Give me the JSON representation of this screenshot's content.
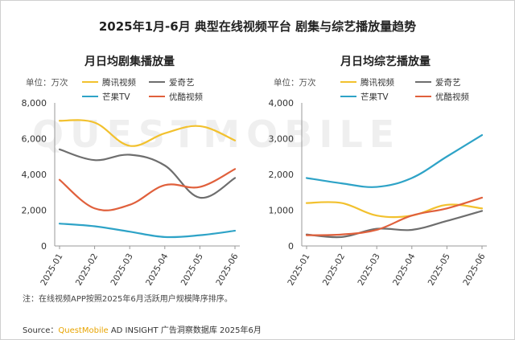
{
  "page": {
    "title": "2025年1月-6月 典型在线视频平台 剧集与综艺播放量趋势",
    "note": "注：在线视频APP按照2025年6月活跃用户规模降序排序。",
    "source_prefix": "Source：",
    "source_brand": "QuestMobile",
    "source_suffix": " AD INSIGHT 广告洞察数据库 2025年6月",
    "watermark": "QUESTMOBILE"
  },
  "legend_colors": {
    "腾讯视频": "#f2c12e",
    "爱奇艺": "#6e6e6e",
    "芒果TV": "#2ea3c7",
    "优酷视频": "#e0603c"
  },
  "chart_data": [
    {
      "type": "line",
      "title": "月日均剧集播放量",
      "unit": "单位：万次",
      "categories": [
        "2025-01",
        "2025-02",
        "2025-03",
        "2025-04",
        "2025-05",
        "2025-06"
      ],
      "ylim": [
        0,
        8000
      ],
      "yticks": [
        0,
        2000,
        4000,
        6000,
        8000
      ],
      "ytick_labels": [
        "0",
        "2,000",
        "4,000",
        "6,000",
        "8,000"
      ],
      "series": [
        {
          "name": "腾讯视频",
          "values": [
            7000,
            6900,
            5600,
            6300,
            6700,
            5900
          ]
        },
        {
          "name": "爱奇艺",
          "values": [
            5400,
            4800,
            5100,
            4500,
            2700,
            3800
          ]
        },
        {
          "name": "芒果TV",
          "values": [
            1250,
            1100,
            800,
            500,
            600,
            850
          ]
        },
        {
          "name": "优酷视频",
          "values": [
            3700,
            2100,
            2300,
            3400,
            3300,
            4300
          ]
        }
      ]
    },
    {
      "type": "line",
      "title": "月日均综艺播放量",
      "unit": "单位：万次",
      "categories": [
        "2025-01",
        "2025-02",
        "2025-03",
        "2025-04",
        "2025-05",
        "2025-06"
      ],
      "ylim": [
        0,
        4000
      ],
      "yticks": [
        0,
        1000,
        2000,
        3000,
        4000
      ],
      "ytick_labels": [
        "0",
        "1,000",
        "2,000",
        "3,000",
        "4,000"
      ],
      "series": [
        {
          "name": "腾讯视频",
          "values": [
            1200,
            1200,
            850,
            850,
            1150,
            1050
          ]
        },
        {
          "name": "爱奇艺",
          "values": [
            320,
            250,
            480,
            450,
            700,
            980
          ]
        },
        {
          "name": "芒果TV",
          "values": [
            1900,
            1750,
            1650,
            1900,
            2500,
            3100
          ]
        },
        {
          "name": "优酷视频",
          "values": [
            300,
            320,
            450,
            850,
            1050,
            1350
          ]
        }
      ]
    }
  ]
}
